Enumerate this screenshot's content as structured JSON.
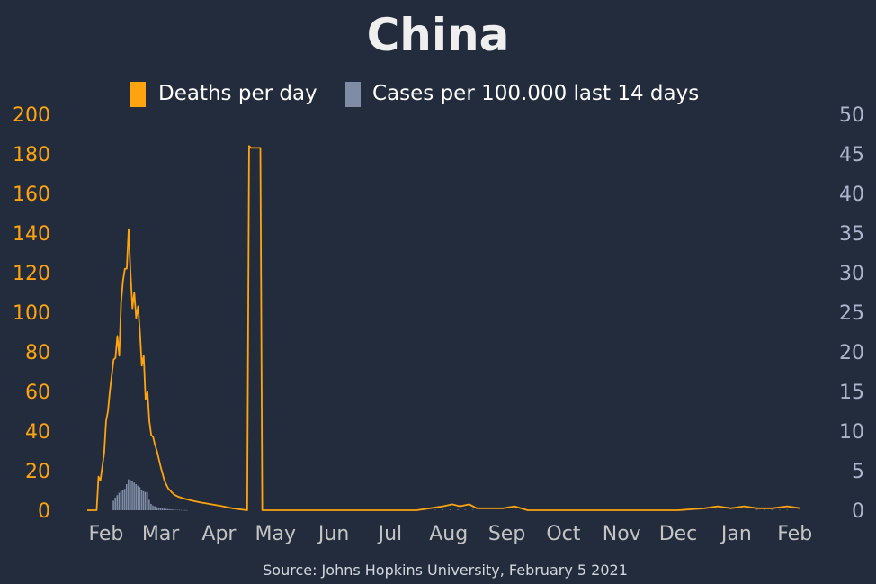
{
  "chart_data": {
    "type": "line",
    "title": "China",
    "source": "Source: Johns Hopkins University, February 5 2021",
    "legend": {
      "placement": "top",
      "entries": [
        "Deaths per day",
        "Cases per 100.000 last 14 days"
      ]
    },
    "colors": {
      "background": "#232c3c",
      "deaths": "#ffa30f",
      "cases": "#7f8ca5",
      "cases_axis": "#a9b6cd",
      "month_labels": "#c4c4c4",
      "text": "#ffffff"
    },
    "x_ticks": [
      "Feb",
      "Mar",
      "Apr",
      "May",
      "Jun",
      "Jul",
      "Aug",
      "Sep",
      "Oct",
      "Nov",
      "Dec",
      "Jan",
      "Feb"
    ],
    "x_tick_dates": [
      "2020-02-01",
      "2020-03-01",
      "2020-04-01",
      "2020-05-01",
      "2020-06-01",
      "2020-07-01",
      "2020-08-01",
      "2020-09-01",
      "2020-10-01",
      "2020-11-01",
      "2020-12-01",
      "2021-01-01",
      "2021-02-01"
    ],
    "x_range": [
      "2020-01-22",
      "2021-02-04"
    ],
    "y_left": {
      "range": [
        0,
        200
      ],
      "ticks": [
        "0",
        "20",
        "40",
        "60",
        "80",
        "100",
        "120",
        "140",
        "160",
        "180",
        "200"
      ]
    },
    "y_right": {
      "range": [
        0,
        50
      ],
      "ticks": [
        "0",
        "5",
        "10",
        "15",
        "20",
        "25",
        "30",
        "35",
        "40",
        "45",
        "50"
      ]
    },
    "grid": false,
    "series": [
      {
        "name": "Deaths per day",
        "axis": "left",
        "render": "line",
        "points": [
          [
            "2020-01-22",
            0
          ],
          [
            "2020-01-27",
            0
          ],
          [
            "2020-01-28",
            17
          ],
          [
            "2020-01-29",
            15
          ],
          [
            "2020-01-30",
            22
          ],
          [
            "2020-01-31",
            29
          ],
          [
            "2020-02-01",
            45
          ],
          [
            "2020-02-02",
            50
          ],
          [
            "2020-02-03",
            60
          ],
          [
            "2020-02-04",
            68
          ],
          [
            "2020-02-05",
            76
          ],
          [
            "2020-02-06",
            77
          ],
          [
            "2020-02-07",
            88
          ],
          [
            "2020-02-08",
            78
          ],
          [
            "2020-02-09",
            105
          ],
          [
            "2020-02-10",
            116
          ],
          [
            "2020-02-11",
            122
          ],
          [
            "2020-02-12",
            122
          ],
          [
            "2020-02-13",
            142
          ],
          [
            "2020-02-14",
            120
          ],
          [
            "2020-02-15",
            102
          ],
          [
            "2020-02-16",
            110
          ],
          [
            "2020-02-17",
            97
          ],
          [
            "2020-02-18",
            103
          ],
          [
            "2020-02-19",
            90
          ],
          [
            "2020-02-20",
            73
          ],
          [
            "2020-02-21",
            78
          ],
          [
            "2020-02-22",
            56
          ],
          [
            "2020-02-23",
            60
          ],
          [
            "2020-02-24",
            45
          ],
          [
            "2020-02-25",
            38
          ],
          [
            "2020-02-26",
            37
          ],
          [
            "2020-02-27",
            33
          ],
          [
            "2020-02-28",
            30
          ],
          [
            "2020-02-29",
            26
          ],
          [
            "2020-03-01",
            22
          ],
          [
            "2020-03-03",
            15
          ],
          [
            "2020-03-05",
            11
          ],
          [
            "2020-03-08",
            8
          ],
          [
            "2020-03-10",
            7
          ],
          [
            "2020-03-13",
            6
          ],
          [
            "2020-03-17",
            5
          ],
          [
            "2020-03-22",
            4
          ],
          [
            "2020-03-28",
            3
          ],
          [
            "2020-04-03",
            2
          ],
          [
            "2020-04-08",
            1
          ],
          [
            "2020-04-16",
            0
          ],
          [
            "2020-04-17",
            184
          ],
          [
            "2020-04-18",
            183
          ],
          [
            "2020-04-23",
            183
          ],
          [
            "2020-04-24",
            0
          ],
          [
            "2020-07-15",
            0
          ],
          [
            "2020-07-22",
            1
          ],
          [
            "2020-07-29",
            2
          ],
          [
            "2020-08-03",
            3
          ],
          [
            "2020-08-07",
            2
          ],
          [
            "2020-08-12",
            3
          ],
          [
            "2020-08-16",
            1
          ],
          [
            "2020-08-30",
            1
          ],
          [
            "2020-09-05",
            2
          ],
          [
            "2020-09-12",
            0
          ],
          [
            "2020-12-01",
            0
          ],
          [
            "2020-12-15",
            1
          ],
          [
            "2020-12-22",
            2
          ],
          [
            "2020-12-29",
            1
          ],
          [
            "2021-01-05",
            2
          ],
          [
            "2021-01-12",
            1
          ],
          [
            "2021-01-20",
            1
          ],
          [
            "2021-01-28",
            2
          ],
          [
            "2021-02-04",
            1
          ]
        ]
      },
      {
        "name": "Cases per 100.000 last 14 days",
        "axis": "right",
        "render": "bars",
        "points": [
          [
            "2020-02-05",
            1.2
          ],
          [
            "2020-02-06",
            1.6
          ],
          [
            "2020-02-07",
            1.9
          ],
          [
            "2020-02-08",
            2.2
          ],
          [
            "2020-02-09",
            2.4
          ],
          [
            "2020-02-10",
            2.6
          ],
          [
            "2020-02-11",
            2.7
          ],
          [
            "2020-02-12",
            3.3
          ],
          [
            "2020-02-13",
            3.9
          ],
          [
            "2020-02-14",
            3.8
          ],
          [
            "2020-02-15",
            3.7
          ],
          [
            "2020-02-16",
            3.5
          ],
          [
            "2020-02-17",
            3.3
          ],
          [
            "2020-02-18",
            3.1
          ],
          [
            "2020-02-19",
            2.9
          ],
          [
            "2020-02-20",
            2.6
          ],
          [
            "2020-02-21",
            2.4
          ],
          [
            "2020-02-22",
            2.3
          ],
          [
            "2020-02-23",
            2.3
          ],
          [
            "2020-02-24",
            1.3
          ],
          [
            "2020-02-25",
            0.8
          ],
          [
            "2020-02-26",
            0.6
          ],
          [
            "2020-02-27",
            0.5
          ],
          [
            "2020-02-28",
            0.4
          ],
          [
            "2020-02-29",
            0.35
          ],
          [
            "2020-03-01",
            0.3
          ],
          [
            "2020-03-02",
            0.25
          ],
          [
            "2020-03-03",
            0.2
          ],
          [
            "2020-03-04",
            0.18
          ],
          [
            "2020-03-05",
            0.15
          ],
          [
            "2020-03-06",
            0.12
          ],
          [
            "2020-03-07",
            0.1
          ],
          [
            "2020-03-08",
            0.08
          ],
          [
            "2020-03-09",
            0.06
          ],
          [
            "2020-03-10",
            0.05
          ],
          [
            "2020-03-11",
            0.04
          ],
          [
            "2020-03-12",
            0.03
          ],
          [
            "2020-03-13",
            0.02
          ],
          [
            "2020-03-14",
            0.02
          ],
          [
            "2020-03-15",
            0.01
          ],
          [
            "2020-07-25",
            0.05
          ],
          [
            "2020-07-29",
            0.07
          ],
          [
            "2020-08-02",
            0.08
          ],
          [
            "2020-08-06",
            0.07
          ],
          [
            "2020-08-10",
            0.06
          ],
          [
            "2020-08-14",
            0.04
          ],
          [
            "2021-01-12",
            0.05
          ],
          [
            "2021-01-16",
            0.06
          ],
          [
            "2021-01-20",
            0.06
          ],
          [
            "2021-01-24",
            0.05
          ],
          [
            "2021-01-28",
            0.04
          ]
        ]
      }
    ]
  }
}
